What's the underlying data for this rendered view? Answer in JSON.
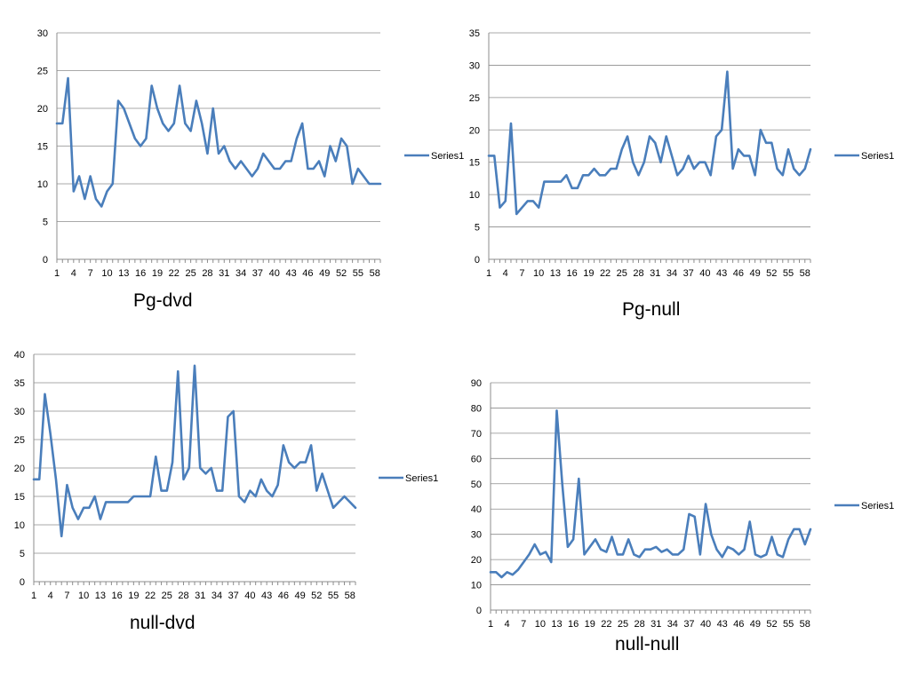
{
  "chart_data": [
    {
      "type": "line",
      "title": "Pg-dvd",
      "x": [
        1,
        2,
        3,
        4,
        5,
        6,
        7,
        8,
        9,
        10,
        11,
        12,
        13,
        14,
        15,
        16,
        17,
        18,
        19,
        20,
        21,
        22,
        23,
        24,
        25,
        26,
        27,
        28,
        29,
        30,
        31,
        32,
        33,
        34,
        35,
        36,
        37,
        38,
        39,
        40,
        41,
        42,
        43,
        44,
        45,
        46,
        47,
        48,
        49,
        50,
        51,
        52,
        53,
        54,
        55,
        56,
        57,
        58,
        59
      ],
      "xticks": [
        "1",
        "4",
        "7",
        "10",
        "13",
        "16",
        "19",
        "22",
        "25",
        "28",
        "31",
        "34",
        "37",
        "40",
        "43",
        "46",
        "49",
        "52",
        "55",
        "58"
      ],
      "ylim": [
        0,
        30
      ],
      "yticks": [
        0,
        5,
        10,
        15,
        20,
        25,
        30
      ],
      "grid": true,
      "legend": "right",
      "series": [
        {
          "name": "Series1",
          "color": "#4a7ebb",
          "values": [
            18,
            18,
            24,
            9,
            11,
            8,
            11,
            8,
            7,
            9,
            10,
            21,
            20,
            18,
            16,
            15,
            16,
            23,
            20,
            18,
            17,
            18,
            23,
            18,
            17,
            21,
            18,
            14,
            20,
            14,
            15,
            13,
            12,
            13,
            12,
            11,
            12,
            14,
            13,
            12,
            12,
            13,
            13,
            16,
            18,
            12,
            12,
            13,
            11,
            15,
            13,
            16,
            15,
            10,
            12,
            11,
            10,
            10,
            10
          ]
        }
      ]
    },
    {
      "type": "line",
      "title": "Pg-null",
      "x": [
        1,
        2,
        3,
        4,
        5,
        6,
        7,
        8,
        9,
        10,
        11,
        12,
        13,
        14,
        15,
        16,
        17,
        18,
        19,
        20,
        21,
        22,
        23,
        24,
        25,
        26,
        27,
        28,
        29,
        30,
        31,
        32,
        33,
        34,
        35,
        36,
        37,
        38,
        39,
        40,
        41,
        42,
        43,
        44,
        45,
        46,
        47,
        48,
        49,
        50,
        51,
        52,
        53,
        54,
        55,
        56,
        57,
        58,
        59
      ],
      "xticks": [
        "1",
        "4",
        "7",
        "10",
        "13",
        "16",
        "19",
        "22",
        "25",
        "28",
        "31",
        "34",
        "37",
        "40",
        "43",
        "46",
        "49",
        "52",
        "55",
        "58"
      ],
      "ylim": [
        0,
        35
      ],
      "yticks": [
        0,
        5,
        10,
        15,
        20,
        25,
        30,
        35
      ],
      "grid": true,
      "legend": "right",
      "series": [
        {
          "name": "Series1",
          "color": "#4a7ebb",
          "values": [
            16,
            16,
            8,
            9,
            21,
            7,
            8,
            9,
            9,
            8,
            12,
            12,
            12,
            12,
            13,
            11,
            11,
            13,
            13,
            14,
            13,
            13,
            14,
            14,
            17,
            19,
            15,
            13,
            15,
            19,
            18,
            15,
            19,
            16,
            13,
            14,
            16,
            14,
            15,
            15,
            13,
            19,
            20,
            29,
            14,
            17,
            16,
            16,
            13,
            20,
            18,
            18,
            14,
            13,
            17,
            14,
            13,
            14,
            17
          ]
        }
      ]
    },
    {
      "type": "line",
      "title": "null-dvd",
      "x": [
        1,
        2,
        3,
        4,
        5,
        6,
        7,
        8,
        9,
        10,
        11,
        12,
        13,
        14,
        15,
        16,
        17,
        18,
        19,
        20,
        21,
        22,
        23,
        24,
        25,
        26,
        27,
        28,
        29,
        30,
        31,
        32,
        33,
        34,
        35,
        36,
        37,
        38,
        39,
        40,
        41,
        42,
        43,
        44,
        45,
        46,
        47,
        48,
        49,
        50,
        51,
        52,
        53,
        54,
        55,
        56,
        57,
        58,
        59
      ],
      "xticks": [
        "1",
        "4",
        "7",
        "10",
        "13",
        "16",
        "19",
        "22",
        "25",
        "28",
        "31",
        "34",
        "37",
        "40",
        "43",
        "46",
        "49",
        "52",
        "55",
        "58"
      ],
      "ylim": [
        0,
        40
      ],
      "yticks": [
        0,
        5,
        10,
        15,
        20,
        25,
        30,
        35,
        40
      ],
      "grid": true,
      "legend": "right",
      "series": [
        {
          "name": "Series1",
          "color": "#4a7ebb",
          "values": [
            18,
            18,
            33,
            26,
            18,
            8,
            17,
            13,
            11,
            13,
            13,
            15,
            11,
            14,
            14,
            14,
            14,
            14,
            15,
            15,
            15,
            15,
            22,
            16,
            16,
            21,
            37,
            18,
            20,
            38,
            20,
            19,
            20,
            16,
            16,
            29,
            30,
            15,
            14,
            16,
            15,
            18,
            16,
            15,
            17,
            24,
            21,
            20,
            21,
            21,
            24,
            16,
            19,
            16,
            13,
            14,
            15,
            14,
            13
          ]
        }
      ]
    },
    {
      "type": "line",
      "title": "null-null",
      "x": [
        1,
        2,
        3,
        4,
        5,
        6,
        7,
        8,
        9,
        10,
        11,
        12,
        13,
        14,
        15,
        16,
        17,
        18,
        19,
        20,
        21,
        22,
        23,
        24,
        25,
        26,
        27,
        28,
        29,
        30,
        31,
        32,
        33,
        34,
        35,
        36,
        37,
        38,
        39,
        40,
        41,
        42,
        43,
        44,
        45,
        46,
        47,
        48,
        49,
        50,
        51,
        52,
        53,
        54,
        55,
        56,
        57,
        58,
        59
      ],
      "xticks": [
        "1",
        "4",
        "7",
        "10",
        "13",
        "16",
        "19",
        "22",
        "25",
        "28",
        "31",
        "34",
        "37",
        "40",
        "43",
        "46",
        "49",
        "52",
        "55",
        "58"
      ],
      "ylim": [
        0,
        90
      ],
      "yticks": [
        0,
        10,
        20,
        30,
        40,
        50,
        60,
        70,
        80,
        90
      ],
      "grid": true,
      "legend": "right",
      "series": [
        {
          "name": "Series1",
          "color": "#4a7ebb",
          "values": [
            15,
            15,
            13,
            15,
            14,
            16,
            19,
            22,
            26,
            22,
            23,
            19,
            79,
            50,
            25,
            28,
            52,
            22,
            25,
            28,
            24,
            23,
            29,
            22,
            22,
            28,
            22,
            21,
            24,
            24,
            25,
            23,
            24,
            22,
            22,
            24,
            38,
            37,
            22,
            42,
            30,
            24,
            21,
            25,
            24,
            22,
            24,
            35,
            22,
            21,
            22,
            29,
            22,
            21,
            28,
            32,
            32,
            26,
            32
          ]
        }
      ]
    }
  ]
}
